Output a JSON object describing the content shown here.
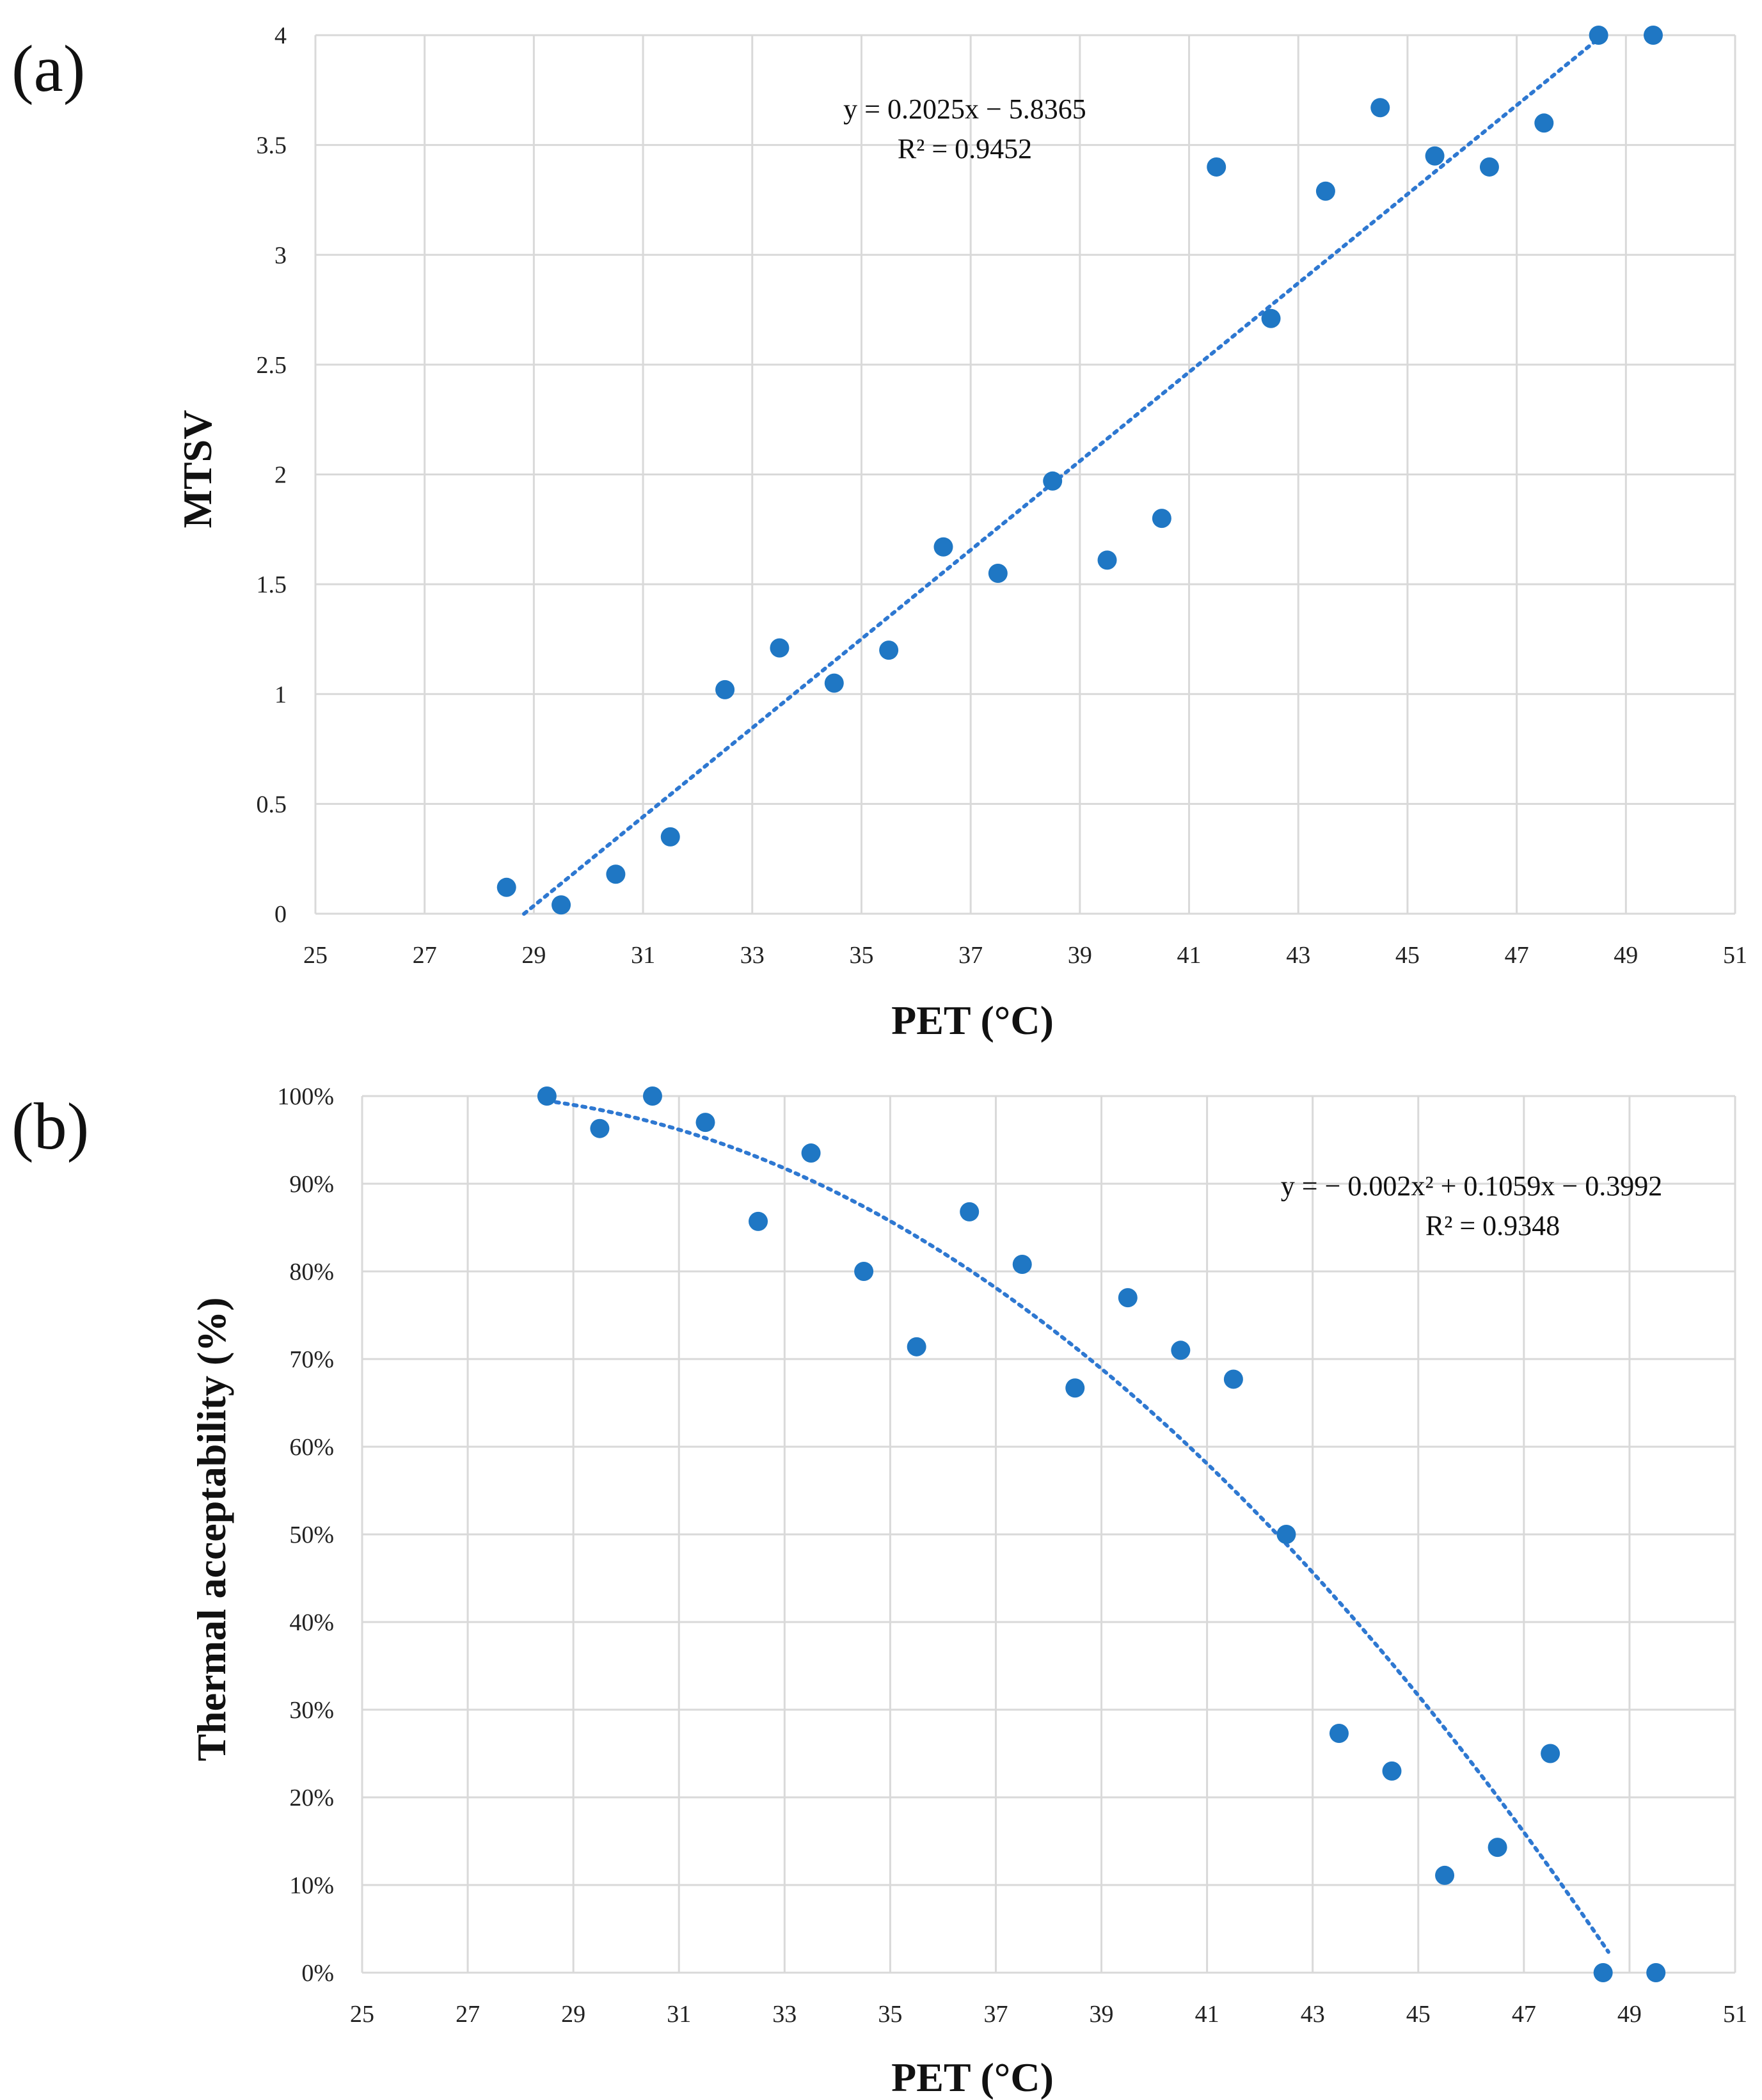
{
  "colors": {
    "marker": "#1f77c4",
    "trend": "#2e78d1",
    "grid": "#d9d9d9"
  },
  "chart_data": [
    {
      "id": "a",
      "type": "scatter",
      "panel_label": "(a)",
      "xlabel": "PET (°C)",
      "ylabel": "MTSV",
      "xlim": [
        25,
        51
      ],
      "ylim": [
        0,
        4
      ],
      "x_ticks": [
        25,
        27,
        29,
        31,
        33,
        35,
        37,
        39,
        41,
        43,
        45,
        47,
        49,
        51
      ],
      "y_ticks": [
        0,
        0.5,
        1,
        1.5,
        2,
        2.5,
        3,
        3.5,
        4
      ],
      "y_tick_labels": [
        "0",
        "0.5",
        "1",
        "1.5",
        "2",
        "2.5",
        "3",
        "3.5",
        "4"
      ],
      "trendline": {
        "type": "linear",
        "coef": [
          0.2025,
          -5.8365
        ],
        "x_range": [
          28.82,
          48.57
        ]
      },
      "equation": "y = 0.2025x − 5.8365",
      "r_squared": "R² = 0.9452",
      "points": [
        [
          28.5,
          0.12
        ],
        [
          29.5,
          0.04
        ],
        [
          30.5,
          0.18
        ],
        [
          31.5,
          0.35
        ],
        [
          32.5,
          1.02
        ],
        [
          33.5,
          1.21
        ],
        [
          34.5,
          1.05
        ],
        [
          35.5,
          1.2
        ],
        [
          36.5,
          1.67
        ],
        [
          37.5,
          1.55
        ],
        [
          38.5,
          1.97
        ],
        [
          39.5,
          1.61
        ],
        [
          40.5,
          1.8
        ],
        [
          41.5,
          3.4
        ],
        [
          42.5,
          2.71
        ],
        [
          43.5,
          3.29
        ],
        [
          44.5,
          3.67
        ],
        [
          45.5,
          3.45
        ],
        [
          46.5,
          3.4
        ],
        [
          47.5,
          3.6
        ],
        [
          48.5,
          4.0
        ],
        [
          49.5,
          4.0
        ]
      ]
    },
    {
      "id": "b",
      "type": "scatter",
      "panel_label": "(b)",
      "xlabel": "PET (°C)",
      "ylabel": "Thermal acceptability (%)",
      "xlim": [
        25,
        51
      ],
      "ylim": [
        0,
        1
      ],
      "x_ticks": [
        25,
        27,
        29,
        31,
        33,
        35,
        37,
        39,
        41,
        43,
        45,
        47,
        49,
        51
      ],
      "y_ticks": [
        0,
        0.1,
        0.2,
        0.3,
        0.4,
        0.5,
        0.6,
        0.7,
        0.8,
        0.9,
        1.0
      ],
      "y_tick_labels": [
        "0%",
        "10%",
        "20%",
        "30%",
        "40%",
        "50%",
        "60%",
        "70%",
        "80%",
        "90%",
        "100%"
      ],
      "trendline": {
        "type": "polynomial",
        "coef": [
          -0.002,
          0.1059,
          -0.3992
        ],
        "x_range": [
          28.5,
          48.6
        ]
      },
      "equation": "y = − 0.002x² + 0.1059x − 0.3992",
      "r_squared": "R² = 0.9348",
      "points": [
        [
          28.5,
          1.0
        ],
        [
          29.5,
          0.963
        ],
        [
          30.5,
          1.0
        ],
        [
          31.5,
          0.97
        ],
        [
          32.5,
          0.857
        ],
        [
          33.5,
          0.935
        ],
        [
          34.5,
          0.8
        ],
        [
          35.5,
          0.714
        ],
        [
          36.5,
          0.868
        ],
        [
          37.5,
          0.808
        ],
        [
          38.5,
          0.667
        ],
        [
          39.5,
          0.77
        ],
        [
          40.5,
          0.71
        ],
        [
          41.5,
          0.677
        ],
        [
          42.5,
          0.5
        ],
        [
          43.5,
          0.273
        ],
        [
          44.5,
          0.23
        ],
        [
          45.5,
          0.111
        ],
        [
          46.5,
          0.143
        ],
        [
          47.5,
          0.25
        ],
        [
          48.5,
          0.0
        ],
        [
          49.5,
          0.0
        ]
      ]
    }
  ]
}
